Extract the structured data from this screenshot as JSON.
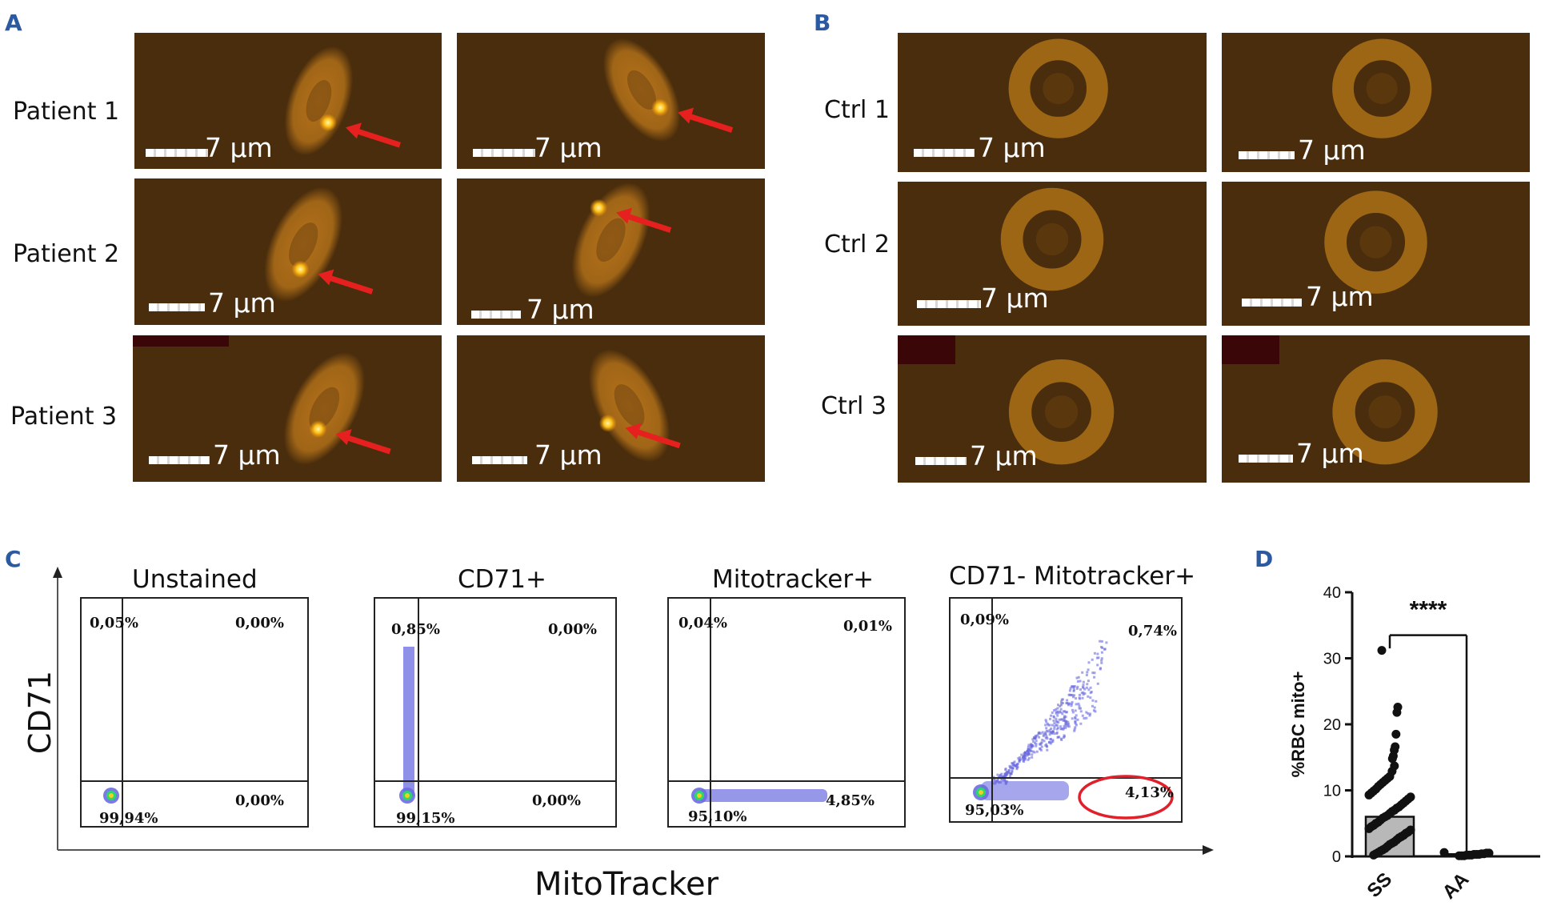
{
  "panels": {
    "a": "A",
    "b": "B",
    "c": "C",
    "d": "D"
  },
  "scale_label": "7 µm",
  "panel_a": {
    "rows": [
      "Patient 1",
      "Patient 2",
      "Patient 3"
    ]
  },
  "panel_b": {
    "rows": [
      "Ctrl 1",
      "Ctrl 2",
      "Ctrl 3"
    ]
  },
  "panel_c": {
    "y_axis": "CD71",
    "x_axis": "MitoTracker",
    "plots": [
      {
        "title": "Unstained",
        "ul": "0,05%",
        "ur": "0,00%",
        "ll": "99,94%",
        "lr": "0,00%"
      },
      {
        "title": "CD71+",
        "ul": "0,85%",
        "ur": "0,00%",
        "ll": "99,15%",
        "lr": "0,00%"
      },
      {
        "title": "Mitotracker+",
        "ul": "0,04%",
        "ur": "0,01%",
        "ll": "95,10%",
        "lr": "4,85%"
      },
      {
        "title": "CD71- Mitotracker+",
        "ul": "0,09%",
        "ur": "0,74%",
        "ll": "95,03%",
        "lr": "4,13%"
      }
    ]
  },
  "colors": {
    "cell_bg": "#4a2d0c",
    "cell_orange": "#d98a1e",
    "arrow": "#e5201e",
    "highlight_circle": "#e0202a",
    "flow_dots": "#6a6be0",
    "panel_letter": "#2c5aa0"
  },
  "chart_data": {
    "type": "bar",
    "categories": [
      "SS",
      "AA"
    ],
    "values": [
      6,
      0.3
    ],
    "ylabel": "%RBC mito+",
    "ylim": [
      0,
      40
    ],
    "yticks": [
      0,
      10,
      20,
      30,
      40
    ],
    "significance": "****",
    "points": {
      "SS": [
        31.2,
        22.6,
        21.8,
        18.5,
        16.6,
        16.1,
        15.2,
        14.8,
        13.7,
        12.9,
        12.1,
        11.8,
        11.5,
        11.2,
        10.9,
        10.6,
        10.2,
        9.9,
        9.6,
        9.3,
        9.0,
        8.7,
        8.4,
        8.1,
        7.8,
        7.5,
        7.3,
        7.0,
        6.8,
        6.5,
        6.2,
        6.0,
        5.8,
        5.5,
        5.2,
        5.0,
        4.7,
        4.5,
        4.2,
        4.0,
        3.7,
        3.5,
        3.2,
        3.0,
        2.8,
        2.5,
        2.2,
        2.0,
        1.8,
        1.5,
        1.2,
        1.0,
        0.8,
        0.6,
        0.4,
        0.2
      ],
      "AA": [
        0.6,
        0.5,
        0.5,
        0.4,
        0.4,
        0.3,
        0.3,
        0.3,
        0.2,
        0.2,
        0.2,
        0.1,
        0.1,
        0.1
      ]
    }
  }
}
